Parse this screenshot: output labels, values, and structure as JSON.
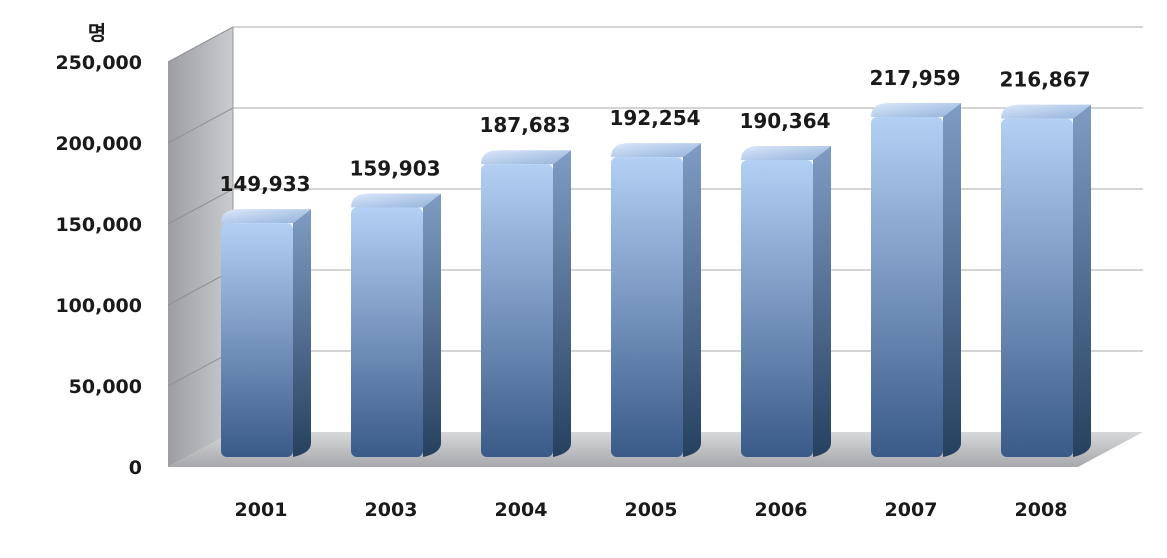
{
  "chart_data": {
    "type": "bar",
    "unit": "명",
    "categories": [
      "2001",
      "2003",
      "2004",
      "2005",
      "2006",
      "2007",
      "2008"
    ],
    "values": [
      149933,
      159903,
      187683,
      192254,
      190364,
      217959,
      216867
    ],
    "data_labels": [
      "149,933",
      "159,903",
      "187,683",
      "192,254",
      "190,364",
      "217,959",
      "216,867"
    ],
    "y_ticks": [
      "0",
      "50,000",
      "100,000",
      "150,000",
      "200,000",
      "250,000"
    ],
    "ylim": [
      0,
      250000
    ],
    "grid": true,
    "legend": false,
    "style": "3d-column"
  },
  "colors": {
    "bar_light": "#b3d0f4",
    "bar_dark": "#3a5a88",
    "bar_side": "#2f4a70",
    "wall": "#b4b6ba",
    "floor": "#c8c9cc",
    "gridline": "#aaaaaa"
  }
}
